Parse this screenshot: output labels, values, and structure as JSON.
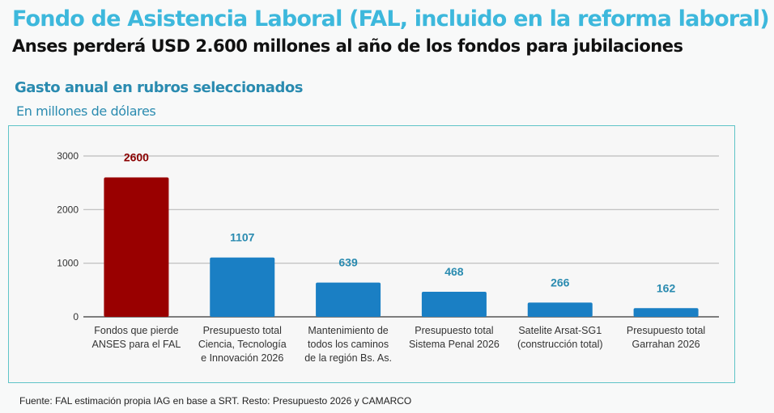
{
  "header": {
    "title": "Fondo de Asistencia Laboral (FAL, incluido en la reforma laboral)",
    "subtitle": "Anses perderá USD 2.600 millones al año de los fondos para jubilaciones"
  },
  "chart_data": {
    "type": "bar",
    "title": "Gasto anual en rubros seleccionados",
    "subtitle": "En millones de dólares",
    "categories": [
      [
        "Fondos que pierde",
        "ANSES para el FAL"
      ],
      [
        "Presupuesto total",
        "Ciencia, Tecnología",
        "e Innovación 2026"
      ],
      [
        "Mantenimiento de",
        "todos los caminos",
        "de la región Bs. As."
      ],
      [
        "Presupuesto total",
        "Sistema Penal 2026"
      ],
      [
        "Satelite Arsat-SG1",
        "(construcción total)"
      ],
      [
        "Presupuesto total",
        "Garrahan 2026"
      ]
    ],
    "values": [
      2600,
      1107,
      639,
      468,
      266,
      162
    ],
    "colors": [
      "#990000",
      "#1a7fc4",
      "#1a7fc4",
      "#1a7fc4",
      "#1a7fc4",
      "#1a7fc4"
    ],
    "label_colors": [
      "#8b0000",
      "#2a8bb0",
      "#2a8bb0",
      "#2a8bb0",
      "#2a8bb0",
      "#2a8bb0"
    ],
    "ylim": [
      0,
      3000
    ],
    "yticks": [
      0,
      1000,
      2000,
      3000
    ],
    "grid": true,
    "xlabel": "",
    "ylabel": ""
  },
  "footer": {
    "source": "Fuente: FAL estimación propia IAG en base a SRT. Resto: Presupuesto 2026 y  CAMARCO"
  }
}
